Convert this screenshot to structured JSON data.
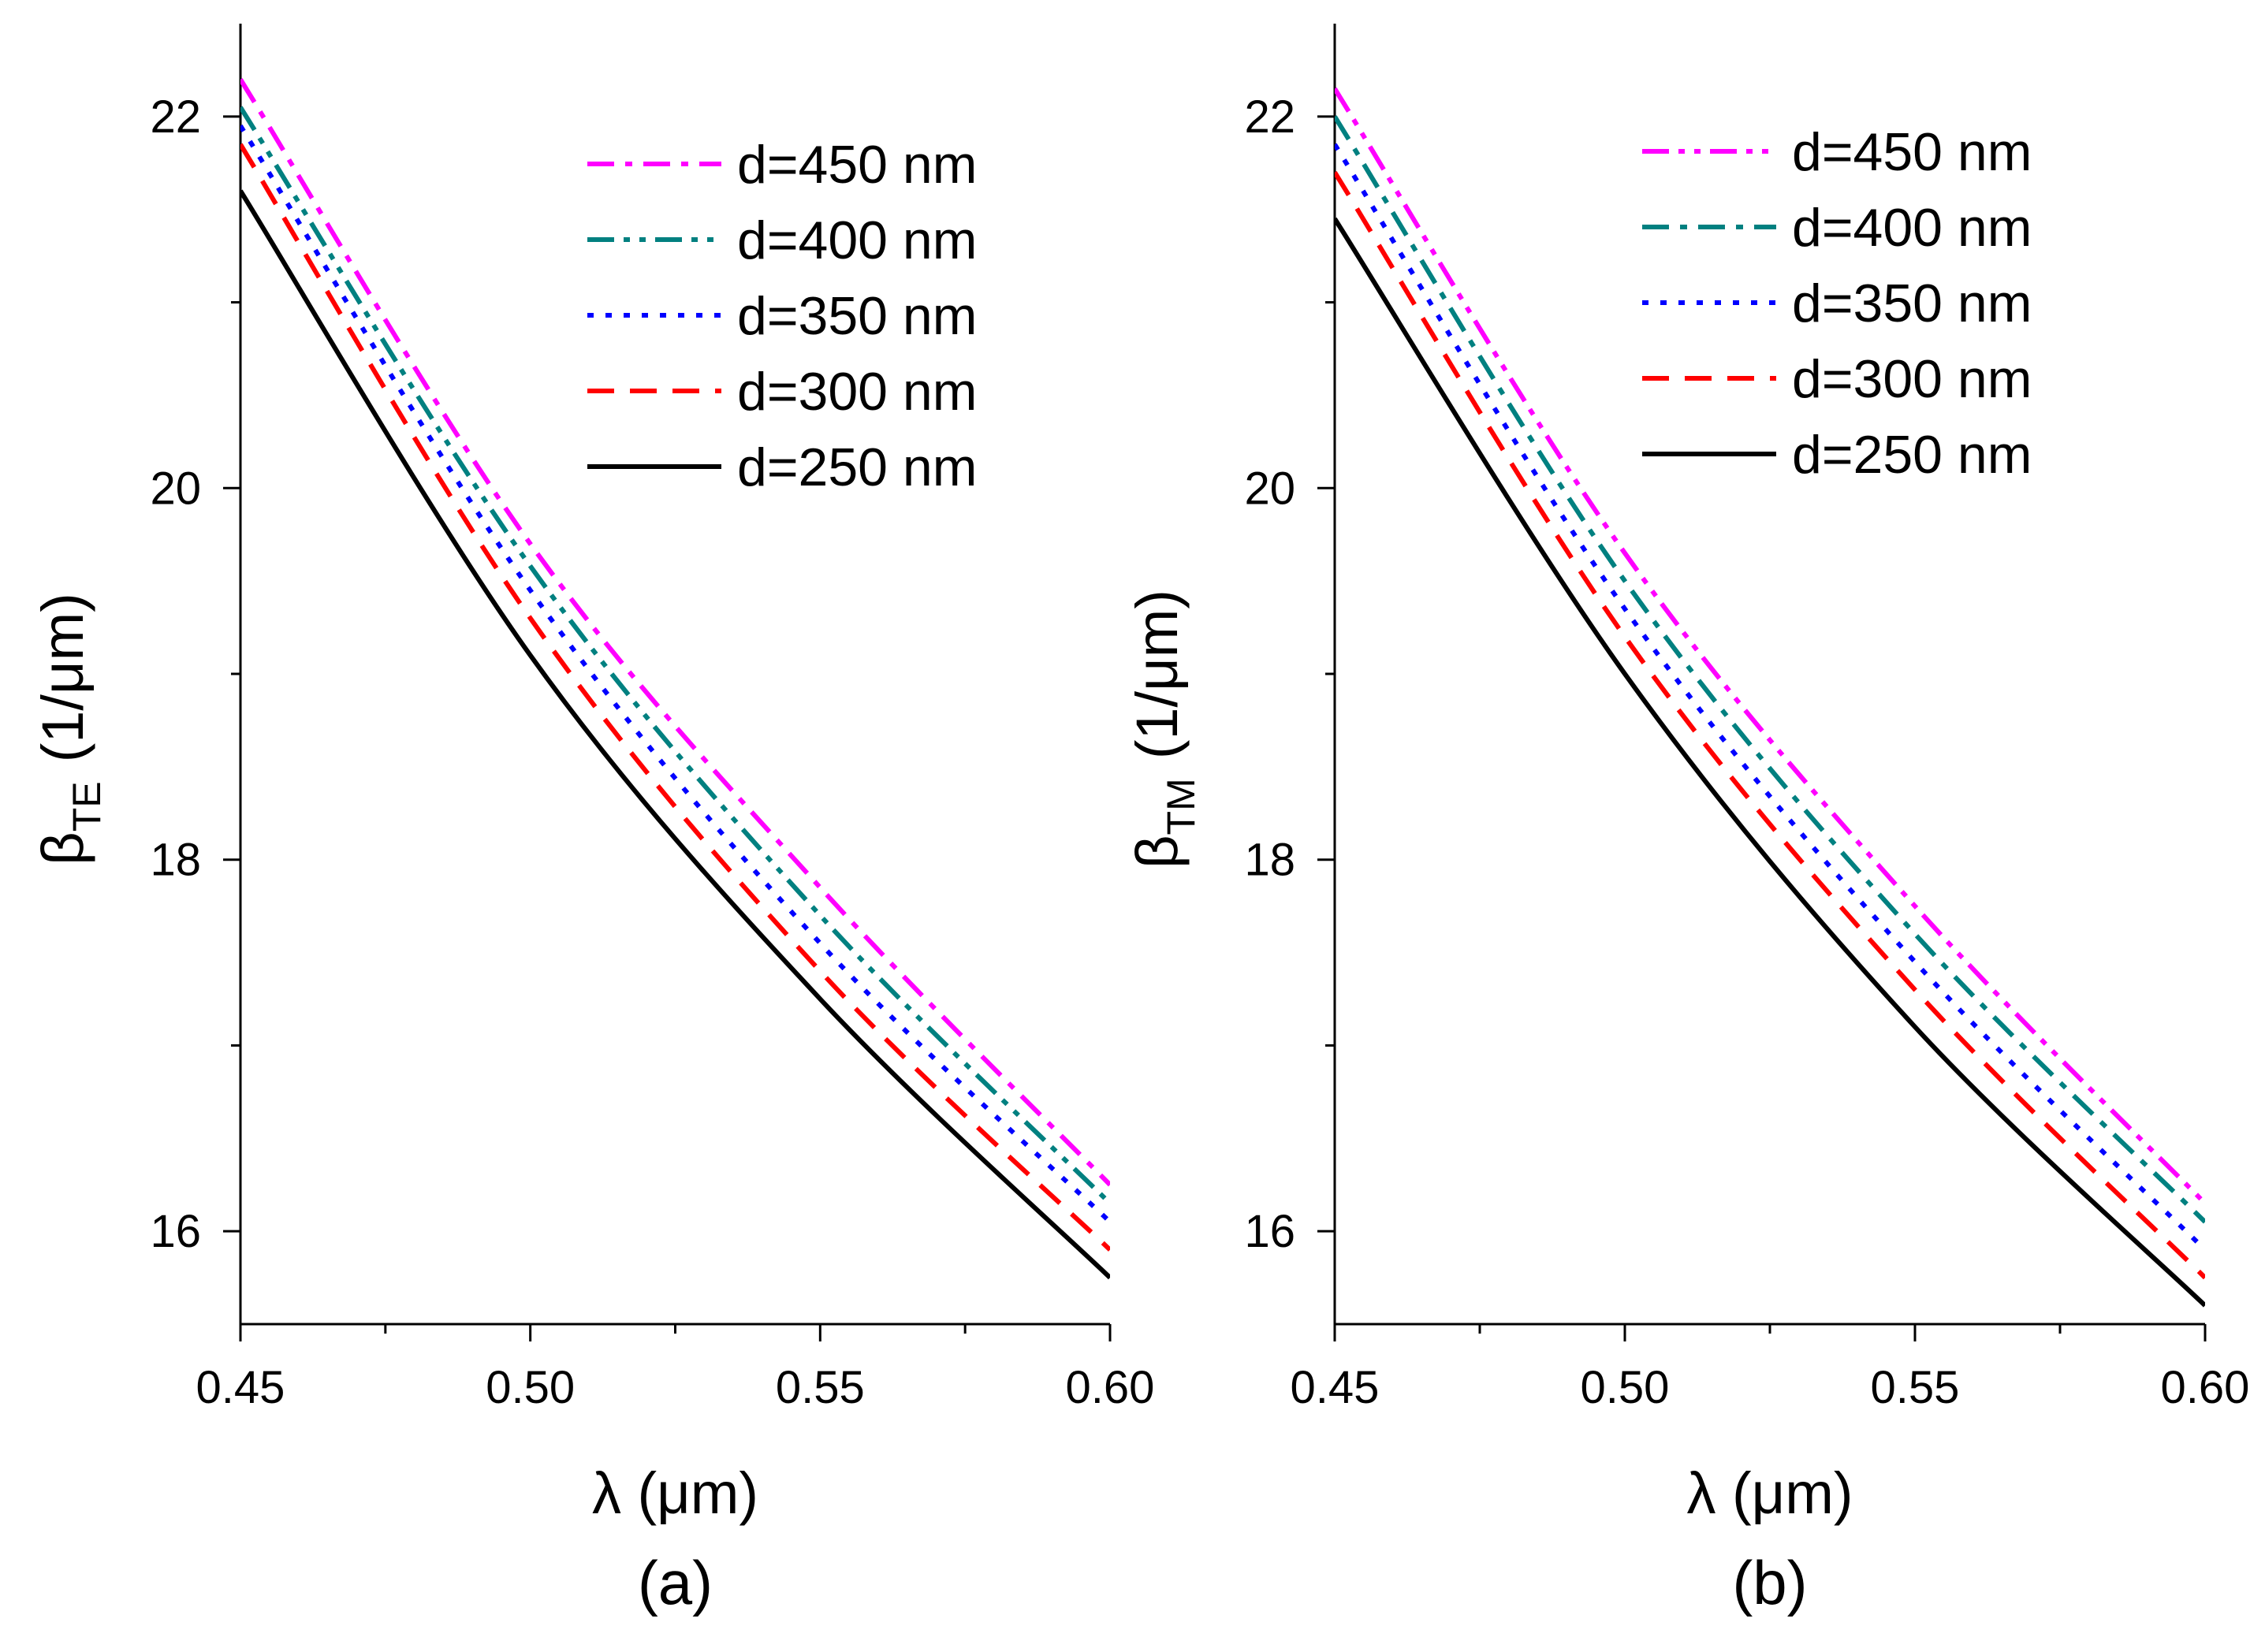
{
  "chart_data": [
    {
      "type": "line",
      "panel_label": "(a)",
      "title": "",
      "xlabel": "λ (μm)",
      "ylabel_main": "β",
      "ylabel_sub": "TE",
      "ylabel_unit": "(1/μm)",
      "xlim": [
        0.45,
        0.6
      ],
      "ylim": [
        15.5,
        22.5
      ],
      "x_ticks": [
        "0.45",
        "0.50",
        "0.55",
        "0.60"
      ],
      "y_ticks": [
        "16",
        "18",
        "20",
        "22"
      ],
      "legend_position": "top-right",
      "x": [
        0.45,
        0.5,
        0.55,
        0.6
      ],
      "series": [
        {
          "name": "d=450 nm",
          "color": "#ff00ff",
          "dash": "dashdot",
          "values": [
            22.2,
            19.7,
            17.85,
            16.25
          ]
        },
        {
          "name": "d=400 nm",
          "color": "#008080",
          "dash": "dashdotdot",
          "values": [
            22.05,
            19.58,
            17.7,
            16.15
          ]
        },
        {
          "name": "d=350 nm",
          "color": "#0000ff",
          "dash": "dot",
          "values": [
            21.95,
            19.45,
            17.55,
            16.05
          ]
        },
        {
          "name": "d=300 nm",
          "color": "#ff0000",
          "dash": "dash",
          "values": [
            21.85,
            19.3,
            17.4,
            15.9
          ]
        },
        {
          "name": "d=250 nm",
          "color": "#000000",
          "dash": "solid",
          "values": [
            21.6,
            19.1,
            17.25,
            15.75
          ]
        }
      ]
    },
    {
      "type": "line",
      "panel_label": "(b)",
      "title": "",
      "xlabel": "λ (μm)",
      "ylabel_main": "β",
      "ylabel_sub": "TM",
      "ylabel_unit": "(1/μm)",
      "xlim": [
        0.45,
        0.6
      ],
      "ylim": [
        15.5,
        22.5
      ],
      "x_ticks": [
        "0.45",
        "0.50",
        "0.55",
        "0.60"
      ],
      "y_ticks": [
        "16",
        "18",
        "20",
        "22"
      ],
      "legend_position": "top-right",
      "x": [
        0.45,
        0.5,
        0.55,
        0.6
      ],
      "series": [
        {
          "name": "d=450 nm",
          "color": "#ff00ff",
          "dash": "dashdotdot",
          "values": [
            22.15,
            19.65,
            17.75,
            16.15
          ]
        },
        {
          "name": "d=400 nm",
          "color": "#008080",
          "dash": "dashdot",
          "values": [
            22.0,
            19.5,
            17.6,
            16.05
          ]
        },
        {
          "name": "d=350 nm",
          "color": "#0000ff",
          "dash": "dot",
          "values": [
            21.85,
            19.35,
            17.45,
            15.9
          ]
        },
        {
          "name": "d=300 nm",
          "color": "#ff0000",
          "dash": "dash",
          "values": [
            21.7,
            19.2,
            17.3,
            15.75
          ]
        },
        {
          "name": "d=250 nm",
          "color": "#000000",
          "dash": "solid",
          "values": [
            21.45,
            19.0,
            17.1,
            15.6
          ]
        }
      ]
    }
  ]
}
